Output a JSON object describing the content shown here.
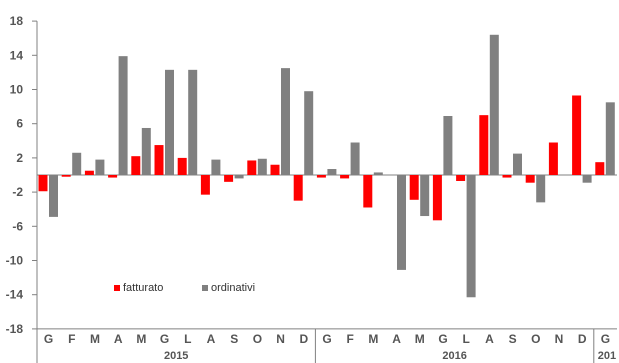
{
  "chart_data": {
    "type": "bar",
    "months": [
      "G",
      "F",
      "M",
      "A",
      "M",
      "G",
      "L",
      "A",
      "S",
      "O",
      "N",
      "D",
      "G",
      "F",
      "M",
      "A",
      "M",
      "G",
      "L",
      "A",
      "S",
      "O",
      "N",
      "D",
      "G"
    ],
    "year_groups": [
      {
        "label": "2015",
        "start": 0,
        "end": 11
      },
      {
        "label": "2016",
        "start": 12,
        "end": 23
      },
      {
        "label": "201",
        "start": 24,
        "end": 24
      }
    ],
    "series": [
      {
        "name": "fatturato",
        "color": "#ff0000",
        "values": [
          -1.9,
          -0.2,
          0.5,
          -0.3,
          2.2,
          3.5,
          2.0,
          -2.3,
          -0.8,
          1.7,
          1.2,
          -3.0,
          -0.3,
          -0.4,
          -3.8,
          0.0,
          -2.9,
          -5.3,
          -0.7,
          7.0,
          -0.3,
          -0.9,
          3.8,
          9.3,
          1.5
        ]
      },
      {
        "name": "ordinativi",
        "color": "#808080",
        "values": [
          -4.9,
          2.6,
          1.8,
          13.9,
          5.5,
          12.3,
          12.3,
          1.8,
          -0.4,
          1.9,
          12.5,
          9.8,
          0.7,
          3.8,
          0.3,
          -11.1,
          -4.8,
          6.9,
          -14.3,
          16.4,
          2.5,
          -3.2,
          0.0,
          -0.9,
          8.5
        ]
      }
    ],
    "yticks": [
      18,
      14,
      10,
      6,
      2,
      -2,
      -6,
      -10,
      -14,
      -18
    ],
    "ylim": [
      -18,
      18
    ],
    "grid": false,
    "legend_placement": "bottom-left"
  }
}
